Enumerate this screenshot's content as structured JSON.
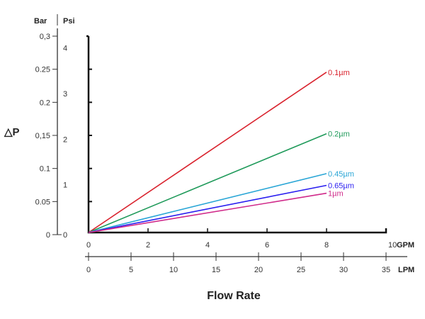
{
  "chart_data": {
    "type": "line",
    "ylabel": "△P",
    "xlabel": "Flow Rate",
    "y_units": {
      "left": "Bar",
      "right": "Psi"
    },
    "bar_ticks": [
      "0",
      "0.05",
      "0.1",
      "0,15",
      "0.2",
      "0.25",
      "0,3"
    ],
    "bar_tick_values": [
      0,
      0.05,
      0.1,
      0.15,
      0.2,
      0.25,
      0.3
    ],
    "psi_ticks": [
      "0",
      "1",
      "2",
      "3",
      "4"
    ],
    "psi_tick_values": [
      0,
      1,
      2,
      3,
      4
    ],
    "gpm_unit": "GPM",
    "gpm_ticks": [
      "0",
      "2",
      "4",
      "6",
      "8",
      "10"
    ],
    "gpm_tick_values": [
      0,
      2,
      4,
      6,
      8,
      10
    ],
    "lpm_unit": "LPM",
    "lpm_ticks": [
      "0",
      "5",
      "10",
      "15",
      "20",
      "25",
      "30",
      "35"
    ],
    "lpm_tick_values": [
      0,
      5,
      10,
      15,
      20,
      25,
      30,
      35
    ],
    "ylim": [
      0,
      0.3
    ],
    "xlim_gpm": [
      0,
      10
    ],
    "grid": false,
    "series": [
      {
        "name": "0.1µm",
        "color": "#d9232e",
        "x": [
          0,
          8
        ],
        "y": [
          0,
          0.245
        ]
      },
      {
        "name": "0.2µm",
        "color": "#1f9a5a",
        "x": [
          0,
          8
        ],
        "y": [
          0,
          0.151
        ]
      },
      {
        "name": "0.45µm",
        "color": "#2aa6d6",
        "x": [
          0,
          8
        ],
        "y": [
          0,
          0.09
        ]
      },
      {
        "name": "0.65µm",
        "color": "#2a1ef0",
        "x": [
          0,
          8
        ],
        "y": [
          0,
          0.072
        ]
      },
      {
        "name": "1µm",
        "color": "#d02a8a",
        "x": [
          0,
          8
        ],
        "y": [
          0,
          0.06
        ]
      }
    ]
  }
}
